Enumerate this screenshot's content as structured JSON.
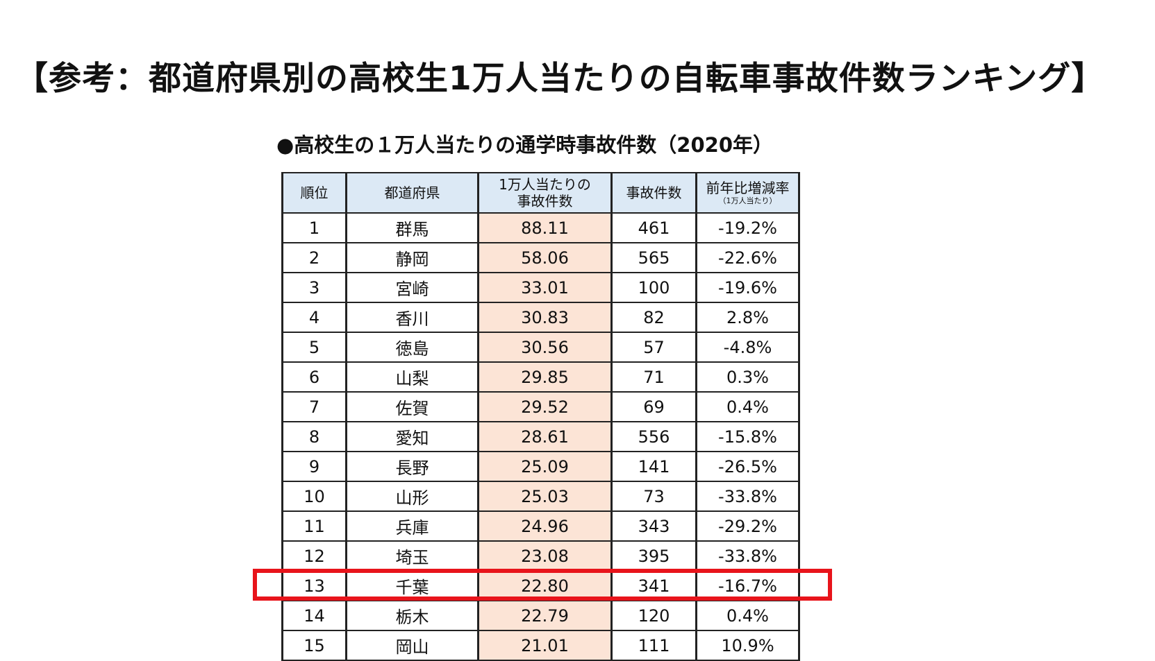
{
  "heading": "【参考：都道府県別の高校生1万人当たりの自転車事故件数ランキング】",
  "table_title": "●高校生の１万人当たりの通学時事故件数（2020年）",
  "columns": {
    "rank": "順位",
    "prefecture": "都道府県",
    "rate_line1": "1万人当たりの",
    "rate_line2": "事故件数",
    "count": "事故件数",
    "change": "前年比増減率",
    "change_sub": "（1万人当たり）"
  },
  "rows": [
    {
      "rank": "1",
      "prefecture": "群馬",
      "rate": "88.11",
      "count": "461",
      "change": "-19.2%"
    },
    {
      "rank": "2",
      "prefecture": "静岡",
      "rate": "58.06",
      "count": "565",
      "change": "-22.6%"
    },
    {
      "rank": "3",
      "prefecture": "宮崎",
      "rate": "33.01",
      "count": "100",
      "change": "-19.6%"
    },
    {
      "rank": "4",
      "prefecture": "香川",
      "rate": "30.83",
      "count": "82",
      "change": "2.8%"
    },
    {
      "rank": "5",
      "prefecture": "徳島",
      "rate": "30.56",
      "count": "57",
      "change": "-4.8%"
    },
    {
      "rank": "6",
      "prefecture": "山梨",
      "rate": "29.85",
      "count": "71",
      "change": "0.3%"
    },
    {
      "rank": "7",
      "prefecture": "佐賀",
      "rate": "29.52",
      "count": "69",
      "change": "0.4%"
    },
    {
      "rank": "8",
      "prefecture": "愛知",
      "rate": "28.61",
      "count": "556",
      "change": "-15.8%"
    },
    {
      "rank": "9",
      "prefecture": "長野",
      "rate": "25.09",
      "count": "141",
      "change": "-26.5%"
    },
    {
      "rank": "10",
      "prefecture": "山形",
      "rate": "25.03",
      "count": "73",
      "change": "-33.8%"
    },
    {
      "rank": "11",
      "prefecture": "兵庫",
      "rate": "24.96",
      "count": "343",
      "change": "-29.2%"
    },
    {
      "rank": "12",
      "prefecture": "埼玉",
      "rate": "23.08",
      "count": "395",
      "change": "-33.8%"
    },
    {
      "rank": "13",
      "prefecture": "千葉",
      "rate": "22.80",
      "count": "341",
      "change": "-16.7%"
    },
    {
      "rank": "14",
      "prefecture": "栃木",
      "rate": "22.79",
      "count": "120",
      "change": "0.4%"
    },
    {
      "rank": "15",
      "prefecture": "岡山",
      "rate": "21.01",
      "count": "111",
      "change": "10.9%"
    }
  ],
  "highlighted_row_rank": "13",
  "colors": {
    "header_bg": "#dce9f5",
    "rate_column_bg": "#fce4d6",
    "highlight_border": "#e8141b"
  }
}
